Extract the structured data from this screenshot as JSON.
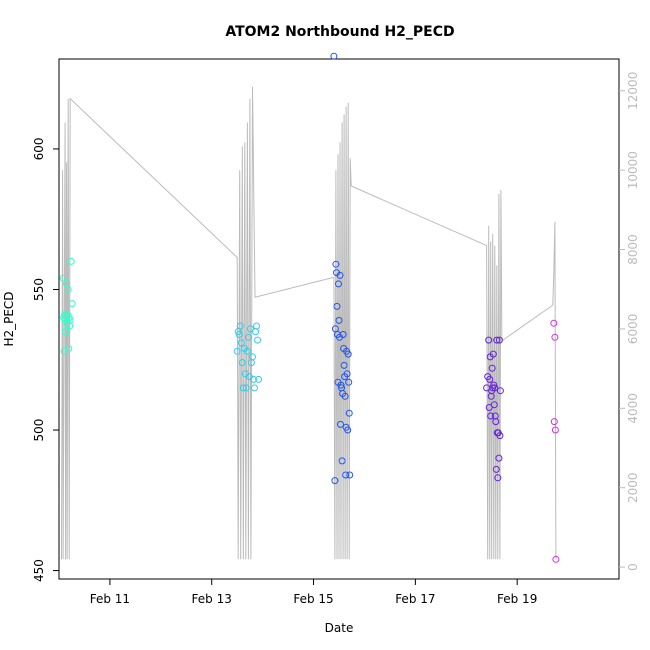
{
  "chart_data": {
    "type": "scatter",
    "title": "ATOM2 Northbound H2_PECD",
    "xlabel": "Date",
    "ylabel": "H2_PECD",
    "xlim": [
      10.0,
      21.0
    ],
    "ylim": [
      447,
      632
    ],
    "y2lim": [
      -300,
      12800
    ],
    "xticks": [
      11,
      13,
      15,
      17,
      19
    ],
    "xtick_labels": [
      "Feb 11",
      "Feb 13",
      "Feb 15",
      "Feb 17",
      "Feb 19"
    ],
    "yticks": [
      450,
      500,
      550,
      600
    ],
    "y2ticks": [
      0,
      2000,
      4000,
      6000,
      8000,
      10000,
      12000
    ],
    "colors": {
      "series1": "#33ffcc",
      "series2": "#33ccee",
      "series3": "#2255ee",
      "series4": "#6622dd",
      "series5": "#cc33dd",
      "altitude": "#bbbbbb"
    },
    "series": [
      {
        "color": "#33ffcc",
        "points": [
          [
            10.08,
            554
          ],
          [
            10.09,
            540
          ],
          [
            10.1,
            528
          ],
          [
            10.11,
            541
          ],
          [
            10.12,
            539
          ],
          [
            10.13,
            535
          ],
          [
            10.14,
            541
          ],
          [
            10.15,
            552
          ],
          [
            10.16,
            538
          ],
          [
            10.17,
            541
          ],
          [
            10.18,
            550
          ],
          [
            10.19,
            529
          ],
          [
            10.2,
            540
          ],
          [
            10.21,
            537
          ],
          [
            10.22,
            539
          ],
          [
            10.24,
            560
          ],
          [
            10.26,
            545
          ]
        ]
      },
      {
        "color": "#33ccee",
        "points": [
          [
            13.5,
            528
          ],
          [
            13.52,
            535
          ],
          [
            13.54,
            534
          ],
          [
            13.56,
            537
          ],
          [
            13.58,
            531
          ],
          [
            13.6,
            524
          ],
          [
            13.62,
            515
          ],
          [
            13.64,
            529
          ],
          [
            13.66,
            520
          ],
          [
            13.68,
            515
          ],
          [
            13.7,
            528
          ],
          [
            13.72,
            533
          ],
          [
            13.74,
            519
          ],
          [
            13.76,
            536
          ],
          [
            13.78,
            524
          ],
          [
            13.8,
            526
          ],
          [
            13.82,
            518
          ],
          [
            13.84,
            515
          ],
          [
            13.86,
            535
          ],
          [
            13.88,
            537
          ],
          [
            13.9,
            532
          ],
          [
            13.92,
            518
          ]
        ]
      },
      {
        "color": "#2255ee",
        "points": [
          [
            15.4,
            633
          ],
          [
            15.42,
            482
          ],
          [
            15.43,
            536
          ],
          [
            15.44,
            559
          ],
          [
            15.45,
            556
          ],
          [
            15.46,
            544
          ],
          [
            15.47,
            534
          ],
          [
            15.48,
            517
          ],
          [
            15.49,
            552
          ],
          [
            15.5,
            539
          ],
          [
            15.51,
            533
          ],
          [
            15.52,
            555
          ],
          [
            15.53,
            502
          ],
          [
            15.54,
            516
          ],
          [
            15.55,
            515
          ],
          [
            15.56,
            489
          ],
          [
            15.57,
            513
          ],
          [
            15.58,
            534
          ],
          [
            15.59,
            529
          ],
          [
            15.6,
            523
          ],
          [
            15.61,
            519
          ],
          [
            15.62,
            512
          ],
          [
            15.63,
            484
          ],
          [
            15.64,
            501
          ],
          [
            15.65,
            528
          ],
          [
            15.66,
            520
          ],
          [
            15.67,
            500
          ],
          [
            15.68,
            527
          ],
          [
            15.69,
            517
          ],
          [
            15.7,
            506
          ],
          [
            15.71,
            484
          ]
        ]
      },
      {
        "color": "#6622dd",
        "points": [
          [
            18.4,
            515
          ],
          [
            18.42,
            519
          ],
          [
            18.44,
            532
          ],
          [
            18.45,
            508
          ],
          [
            18.46,
            518
          ],
          [
            18.47,
            526
          ],
          [
            18.48,
            505
          ],
          [
            18.49,
            512
          ],
          [
            18.5,
            514
          ],
          [
            18.51,
            522
          ],
          [
            18.52,
            515
          ],
          [
            18.53,
            527
          ],
          [
            18.54,
            516
          ],
          [
            18.55,
            509
          ],
          [
            18.56,
            515
          ],
          [
            18.57,
            505
          ],
          [
            18.58,
            503
          ],
          [
            18.59,
            486
          ],
          [
            18.6,
            532
          ],
          [
            18.61,
            499
          ],
          [
            18.62,
            483
          ],
          [
            18.63,
            499
          ],
          [
            18.64,
            490
          ],
          [
            18.65,
            532
          ],
          [
            18.66,
            498
          ],
          [
            18.67,
            514
          ]
        ]
      },
      {
        "color": "#cc33dd",
        "points": [
          [
            19.72,
            538
          ],
          [
            19.73,
            503
          ],
          [
            19.74,
            533
          ],
          [
            19.75,
            500
          ],
          [
            19.76,
            454
          ]
        ]
      }
    ],
    "altitude_line": [
      [
        10.05,
        200
      ],
      [
        10.07,
        10000
      ],
      [
        10.08,
        200
      ],
      [
        10.12,
        11200
      ],
      [
        10.13,
        200
      ],
      [
        10.15,
        10200
      ],
      [
        10.16,
        200
      ],
      [
        10.18,
        11800
      ],
      [
        10.2,
        200
      ],
      [
        10.22,
        11800
      ],
      [
        13.5,
        7800
      ],
      [
        13.52,
        200
      ],
      [
        13.55,
        10000
      ],
      [
        13.57,
        200
      ],
      [
        13.6,
        10600
      ],
      [
        13.62,
        200
      ],
      [
        13.65,
        10700
      ],
      [
        13.67,
        200
      ],
      [
        13.7,
        11200
      ],
      [
        13.72,
        200
      ],
      [
        13.75,
        11800
      ],
      [
        13.77,
        200
      ],
      [
        13.8,
        12100
      ],
      [
        13.85,
        6800
      ],
      [
        15.4,
        7300
      ],
      [
        15.42,
        200
      ],
      [
        15.44,
        10000
      ],
      [
        15.46,
        200
      ],
      [
        15.48,
        10400
      ],
      [
        15.5,
        200
      ],
      [
        15.52,
        10700
      ],
      [
        15.54,
        200
      ],
      [
        15.56,
        11200
      ],
      [
        15.58,
        200
      ],
      [
        15.6,
        11400
      ],
      [
        15.62,
        200
      ],
      [
        15.64,
        11600
      ],
      [
        15.66,
        200
      ],
      [
        15.68,
        11700
      ],
      [
        15.7,
        200
      ],
      [
        15.72,
        10300
      ],
      [
        15.74,
        9600
      ],
      [
        18.4,
        8100
      ],
      [
        18.42,
        200
      ],
      [
        18.44,
        8600
      ],
      [
        18.46,
        200
      ],
      [
        18.48,
        8200
      ],
      [
        18.5,
        200
      ],
      [
        18.52,
        8400
      ],
      [
        18.54,
        200
      ],
      [
        18.56,
        8100
      ],
      [
        18.58,
        200
      ],
      [
        18.6,
        7600
      ],
      [
        18.62,
        200
      ],
      [
        18.64,
        9400
      ],
      [
        18.66,
        200
      ],
      [
        18.68,
        9500
      ],
      [
        18.7,
        5700
      ],
      [
        19.7,
        6600
      ],
      [
        19.72,
        7400
      ],
      [
        19.74,
        8700
      ],
      [
        19.76,
        200
      ]
    ]
  }
}
